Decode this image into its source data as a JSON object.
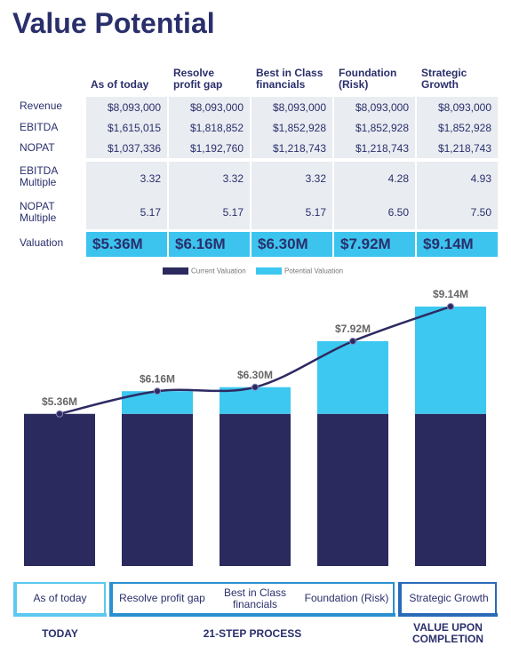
{
  "title": "Value Potential",
  "table": {
    "columns": [
      "As of today",
      "Resolve profit gap",
      "Best in Class financials",
      "Foundation (Risk)",
      "Strategic Growth"
    ],
    "rows": [
      {
        "label": "Revenue",
        "cells": [
          "$8,093,000",
          "$8,093,000",
          "$8,093,000",
          "$8,093,000",
          "$8,093,000"
        ]
      },
      {
        "label": "EBITDA",
        "cells": [
          "$1,615,015",
          "$1,818,852",
          "$1,852,928",
          "$1,852,928",
          "$1,852,928"
        ]
      },
      {
        "label": "NOPAT",
        "cells": [
          "$1,037,336",
          "$1,192,760",
          "$1,218,743",
          "$1,218,743",
          "$1,218,743"
        ]
      },
      {
        "label": "EBITDA Multiple",
        "cells": [
          "3.32",
          "3.32",
          "3.32",
          "4.28",
          "4.93"
        ]
      },
      {
        "label": "NOPAT Multiple",
        "cells": [
          "5.17",
          "5.17",
          "5.17",
          "6.50",
          "7.50"
        ]
      },
      {
        "label": "Valuation",
        "cells": [
          "$5.36M",
          "$6.16M",
          "$6.30M",
          "$7.92M",
          "$9.14M"
        ]
      }
    ]
  },
  "chart_data": {
    "type": "bar",
    "stacked": true,
    "legend": "top",
    "categories": [
      "As of today",
      "Resolve profit gap",
      "Best in Class financials",
      "Foundation (Risk)",
      "Strategic Growth"
    ],
    "series": [
      {
        "name": "Current Valuation",
        "color": "#2b2a5e",
        "values": [
          5.36,
          5.36,
          5.36,
          5.36,
          5.36
        ]
      },
      {
        "name": "Potential Valuation",
        "color": "#3cc8f0",
        "values": [
          0,
          0.8,
          0.94,
          2.56,
          3.78
        ]
      }
    ],
    "line": {
      "color": "#2d2a63",
      "values": [
        5.36,
        6.16,
        6.3,
        7.92,
        9.14
      ],
      "value_labels": [
        "$5.36M",
        "$6.16M",
        "$6.30M",
        "$7.92M",
        "$9.14M"
      ]
    },
    "stages": [
      "TODAY",
      "21-STEP PROCESS",
      "VALUE UPON COMPLETION"
    ]
  }
}
